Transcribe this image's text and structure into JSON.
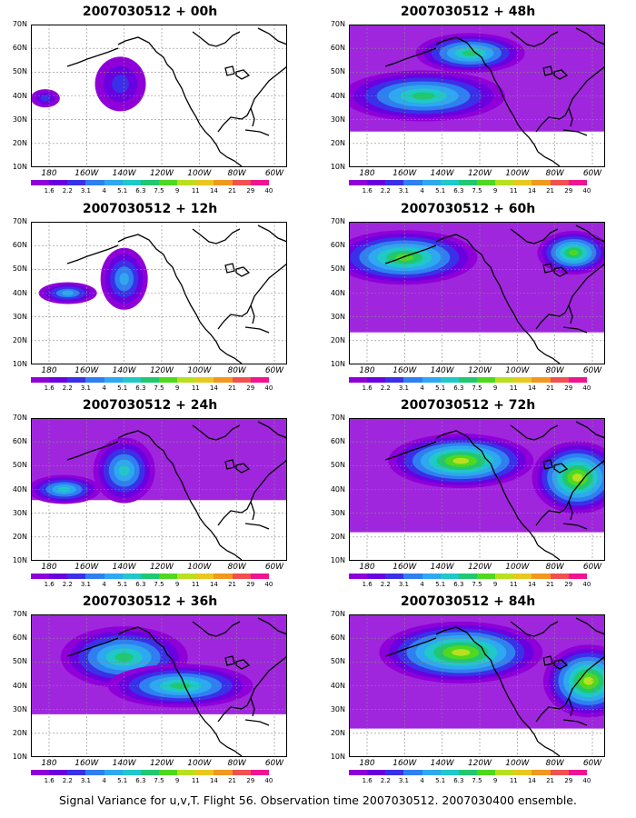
{
  "map": {
    "lat_labels": [
      "70N",
      "60N",
      "50N",
      "40N",
      "30N",
      "20N",
      "10N"
    ],
    "lon_labels": [
      "180",
      "160W",
      "140W",
      "120W",
      "100W",
      "80W",
      "60W"
    ],
    "colorbar": {
      "labels": [
        "1.6",
        "2.2",
        "3.1",
        "4",
        "5.1",
        "6.3",
        "7.5",
        "9",
        "11",
        "14",
        "21",
        "29",
        "40"
      ],
      "colors": [
        "#8f00d8",
        "#6a00e0",
        "#3a30e8",
        "#2f7ff0",
        "#2ea8f0",
        "#20c8c8",
        "#20c870",
        "#50d820",
        "#b8e020",
        "#e8c820",
        "#f09820",
        "#f05050",
        "#f01490"
      ]
    }
  },
  "panels": [
    {
      "title": "2007030512 + 00h",
      "intensity": 0.3,
      "spread": 0.15
    },
    {
      "title": "2007030512 + 12h",
      "intensity": 0.45,
      "spread": 0.35
    },
    {
      "title": "2007030512 + 24h",
      "intensity": 0.55,
      "spread": 0.55
    },
    {
      "title": "2007030512 + 36h",
      "intensity": 0.6,
      "spread": 0.8
    },
    {
      "title": "2007030512 + 48h",
      "intensity": 0.65,
      "spread": 0.9
    },
    {
      "title": "2007030512 + 60h",
      "intensity": 0.7,
      "spread": 0.95
    },
    {
      "title": "2007030512 + 72h",
      "intensity": 0.8,
      "spread": 1.0
    },
    {
      "title": "2007030512 + 84h",
      "intensity": 0.85,
      "spread": 1.0
    }
  ],
  "caption": "Signal Variance for u,v,T. Flight 56. Observation time 2007030512. 2007030400 ensemble."
}
